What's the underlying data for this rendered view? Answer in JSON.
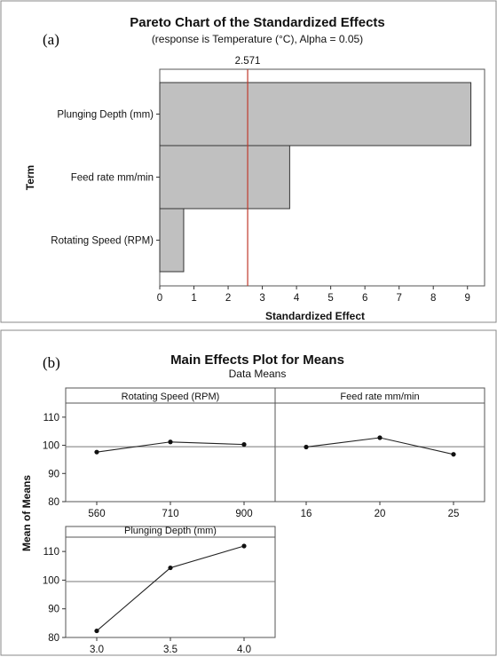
{
  "chart_data": [
    {
      "type": "bar",
      "orientation": "horizontal",
      "panel_label": "(a)",
      "title": "Pareto Chart of the Standardized Effects",
      "subtitle": "(response is Temperature (°C), Alpha = 0.05)",
      "xlabel": "Standardized Effect",
      "ylabel": "Term",
      "categories": [
        "Plunging Depth (mm)",
        "Feed rate mm/min",
        "Rotating Speed (RPM)"
      ],
      "values": [
        9.1,
        3.8,
        0.7
      ],
      "xlim": [
        0,
        9.5
      ],
      "xticks": [
        "0",
        "1",
        "2",
        "3",
        "4",
        "5",
        "6",
        "7",
        "8",
        "9"
      ],
      "reference_line": {
        "value": 2.571,
        "label": "2.571",
        "color": "#c0392b"
      },
      "bar_color": "#c0c0c0",
      "grid": false
    },
    {
      "type": "line",
      "panel_label": "(b)",
      "title": "Main Effects Plot for Means",
      "subtitle": "Data Means",
      "ylabel": "Mean of Means",
      "ylim": [
        80,
        115
      ],
      "yticks": [
        "80",
        "90",
        "100",
        "110"
      ],
      "mean_reference": 99.5,
      "panels": [
        {
          "name": "Rotating Speed (RPM)",
          "categories": [
            "560",
            "710",
            "900"
          ],
          "values": [
            97.6,
            101.2,
            100.3
          ]
        },
        {
          "name": "Feed rate mm/min",
          "categories": [
            "16",
            "20",
            "25"
          ],
          "values": [
            99.4,
            102.7,
            96.8
          ]
        },
        {
          "name": "Plunging Depth (mm)",
          "categories": [
            "3.0",
            "3.5",
            "4.0"
          ],
          "values": [
            82.3,
            104.3,
            111.9
          ]
        }
      ],
      "grid": false
    }
  ]
}
